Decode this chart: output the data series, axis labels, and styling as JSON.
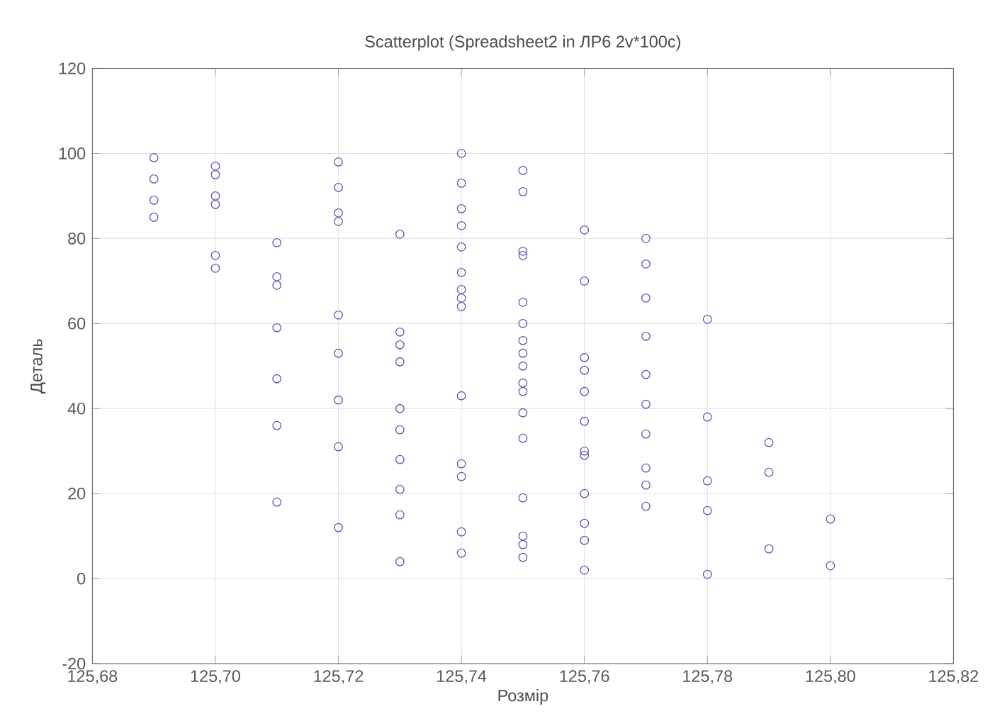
{
  "chart_data": {
    "type": "scatter",
    "title": "Scatterplot (Spreadsheet2 in ЛР6 2v*100c)",
    "xlabel": "Розмір",
    "ylabel": "Деталь",
    "x": [
      125.69,
      125.69,
      125.69,
      125.69,
      125.7,
      125.7,
      125.7,
      125.7,
      125.7,
      125.7,
      125.71,
      125.71,
      125.71,
      125.71,
      125.71,
      125.71,
      125.71,
      125.72,
      125.72,
      125.72,
      125.72,
      125.72,
      125.72,
      125.72,
      125.72,
      125.72,
      125.73,
      125.73,
      125.73,
      125.73,
      125.73,
      125.73,
      125.73,
      125.73,
      125.73,
      125.73,
      125.74,
      125.74,
      125.74,
      125.74,
      125.74,
      125.74,
      125.74,
      125.74,
      125.74,
      125.74,
      125.74,
      125.74,
      125.74,
      125.74,
      125.75,
      125.75,
      125.75,
      125.75,
      125.75,
      125.75,
      125.75,
      125.75,
      125.75,
      125.75,
      125.75,
      125.75,
      125.75,
      125.75,
      125.75,
      125.75,
      125.75,
      125.76,
      125.76,
      125.76,
      125.76,
      125.76,
      125.76,
      125.76,
      125.76,
      125.76,
      125.76,
      125.76,
      125.76,
      125.77,
      125.77,
      125.77,
      125.77,
      125.77,
      125.77,
      125.77,
      125.77,
      125.77,
      125.77,
      125.78,
      125.78,
      125.78,
      125.78,
      125.78,
      125.79,
      125.79,
      125.79,
      125.8,
      125.8
    ],
    "series": [
      {
        "color": "#5a5ab4",
        "values": [
          99,
          94,
          89,
          85,
          97,
          95,
          90,
          88,
          76,
          73,
          79,
          71,
          69,
          59,
          47,
          36,
          18,
          98,
          92,
          86,
          84,
          62,
          53,
          42,
          31,
          12,
          81,
          58,
          55,
          51,
          40,
          35,
          28,
          21,
          15,
          4,
          100,
          93,
          87,
          83,
          78,
          72,
          68,
          66,
          64,
          43,
          27,
          24,
          11,
          6,
          96,
          91,
          77,
          76,
          65,
          60,
          56,
          53,
          50,
          46,
          44,
          39,
          33,
          19,
          10,
          8,
          5,
          82,
          70,
          52,
          49,
          44,
          37,
          30,
          29,
          20,
          13,
          9,
          2,
          80,
          74,
          66,
          57,
          48,
          41,
          34,
          26,
          22,
          17,
          61,
          38,
          23,
          16,
          1,
          32,
          25,
          7,
          14,
          3
        ]
      }
    ],
    "xlim": [
      125.68,
      125.82
    ],
    "ylim": [
      -20,
      120
    ],
    "xticks": [
      {
        "value": 125.68,
        "label": "125,68"
      },
      {
        "value": 125.7,
        "label": "125,70"
      },
      {
        "value": 125.72,
        "label": "125,72"
      },
      {
        "value": 125.74,
        "label": "125,74"
      },
      {
        "value": 125.76,
        "label": "125,76"
      },
      {
        "value": 125.78,
        "label": "125,78"
      },
      {
        "value": 125.8,
        "label": "125,80"
      },
      {
        "value": 125.82,
        "label": "125,82"
      }
    ],
    "yticks": [
      -20,
      0,
      20,
      40,
      60,
      80,
      100,
      120
    ],
    "grid": true,
    "marker": "circle"
  }
}
